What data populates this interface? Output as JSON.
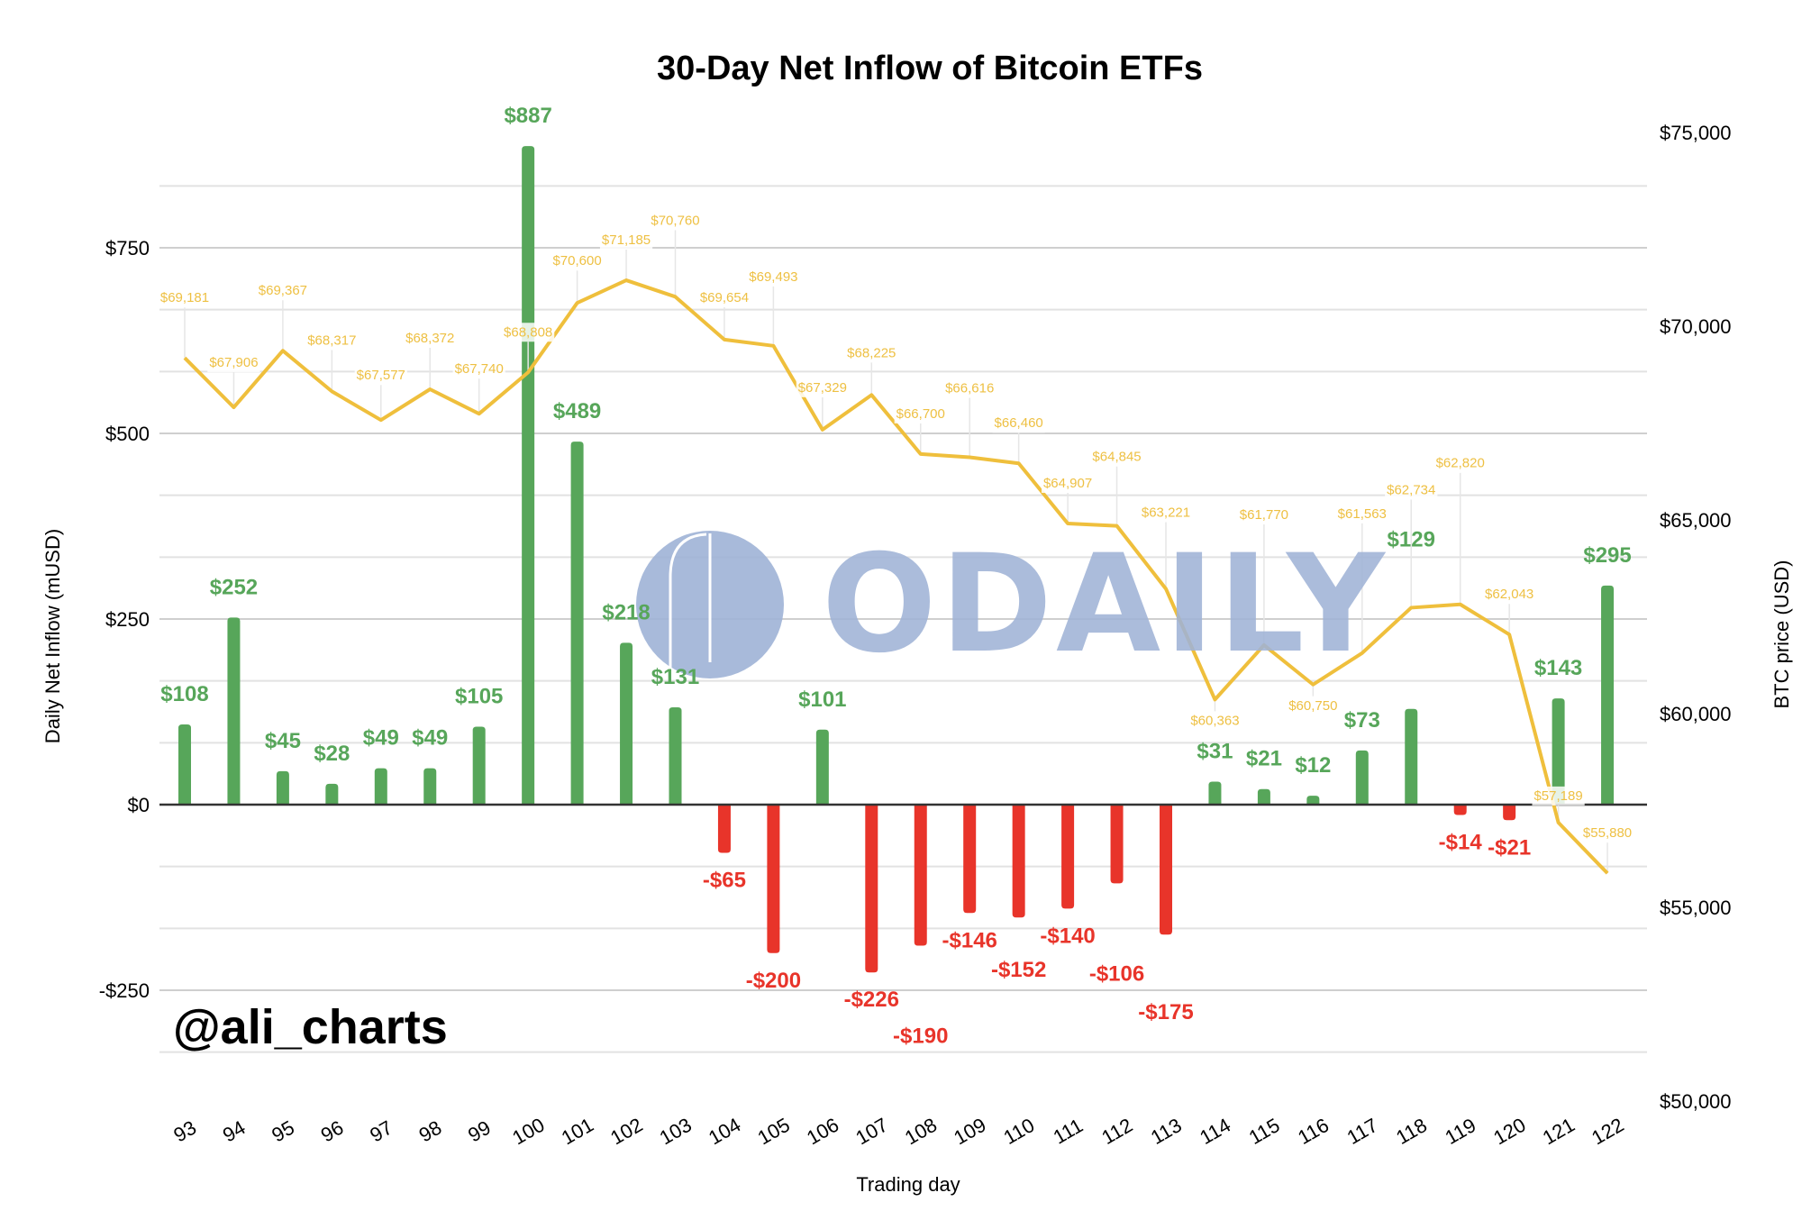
{
  "chart_data": {
    "type": "bar+line",
    "title": "30-Day Net Inflow of Bitcoin ETFs",
    "xlabel": "Trading day",
    "ylabel_left": "Daily Net Inflow (mUSD)",
    "ylabel_right": "BTC price (USD)",
    "ylim_left": [
      -333,
      833
    ],
    "ylim_right": [
      50000,
      75000
    ],
    "left_ticks": [
      {
        "value": 750,
        "label": "$750"
      },
      {
        "value": 500,
        "label": "$500"
      },
      {
        "value": 250,
        "label": "$250"
      },
      {
        "value": 0,
        "label": "$0"
      },
      {
        "value": -250,
        "label": "-$250"
      }
    ],
    "right_ticks": [
      {
        "value": 75000,
        "label": "$75,000"
      },
      {
        "value": 70000,
        "label": "$70,000"
      },
      {
        "value": 65000,
        "label": "$65,000"
      },
      {
        "value": 60000,
        "label": "$60,000"
      },
      {
        "value": 55000,
        "label": "$55,000"
      },
      {
        "value": 50000,
        "label": "$50,000"
      }
    ],
    "grid": true,
    "categories": [
      "93",
      "94",
      "95",
      "96",
      "97",
      "98",
      "99",
      "100",
      "101",
      "102",
      "103",
      "104",
      "105",
      "106",
      "107",
      "108",
      "109",
      "110",
      "111",
      "112",
      "113",
      "114",
      "115",
      "116",
      "117",
      "118",
      "119",
      "120",
      "121",
      "122"
    ],
    "series": [
      {
        "name": "Daily Net Inflow",
        "type": "bar",
        "axis": "left",
        "values": [
          108,
          252,
          45,
          28,
          49,
          49,
          105,
          887,
          489,
          218,
          131,
          -65,
          -200,
          101,
          -226,
          -190,
          -146,
          -152,
          -140,
          -106,
          -175,
          31,
          21,
          12,
          73,
          129,
          -14,
          -21,
          143,
          295
        ],
        "labels": [
          "$108",
          "$252",
          "$45",
          "$28",
          "$49",
          "$49",
          "$105",
          "$887",
          "$489",
          "$218",
          "$131",
          "-$65",
          "-$200",
          "$101",
          "-$226",
          "-$190",
          "-$146",
          "-$152",
          "-$140",
          "-$106",
          "-$175",
          "$31",
          "$21",
          "$12",
          "$73",
          "$129",
          "-$14",
          "-$21",
          "$143",
          "$295"
        ]
      },
      {
        "name": "BTC price",
        "type": "line",
        "axis": "right",
        "values": [
          69181,
          67906,
          69367,
          68317,
          67577,
          68372,
          67740,
          68808,
          70600,
          71185,
          70760,
          69654,
          69493,
          67329,
          68225,
          66700,
          66616,
          66460,
          64907,
          64845,
          63221,
          60363,
          61770,
          60750,
          61563,
          62734,
          62820,
          62043,
          57189,
          55880
        ],
        "labels": [
          "$69,181",
          "$67,906",
          "$69,367",
          "$68,317",
          "$67,577",
          "$68,372",
          "$67,740",
          "$68,808",
          "$70,600",
          "$71,185",
          "$70,760",
          "$69,654",
          "$69,493",
          "$67,329",
          "$68,225",
          "$66,700",
          "$66,616",
          "$66,460",
          "$64,907",
          "$64,845",
          "$63,221",
          "$60,363",
          "$61,770",
          "$60,750",
          "$61,563",
          "$62,734",
          "$62,820",
          "$62,043",
          "$57,189",
          "$55,880"
        ]
      }
    ],
    "colors": {
      "positive_bar": "#57a65a",
      "negative_bar": "#e8342a",
      "price_line": "#efbf3c",
      "price_label": "#eec043"
    },
    "legend": "none"
  },
  "watermark": {
    "text": "ODAILY"
  },
  "credit": {
    "text": "@ali_charts"
  }
}
